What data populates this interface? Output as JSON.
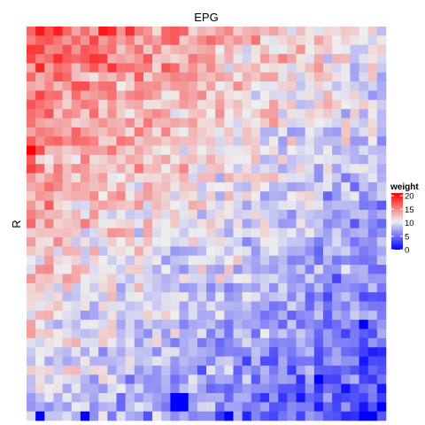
{
  "chart_data": {
    "type": "heatmap",
    "title": "EPG",
    "xlabel": "",
    "ylabel": "R",
    "n_cols": 40,
    "n_rows": 43,
    "fill_variable": "weight",
    "fill_range": [
      0,
      21
    ],
    "colorscale": {
      "low": "#0000FF",
      "mid": "#EEEEEE",
      "high": "#FF0000",
      "midpoint": 10.5
    },
    "legend": {
      "title": "weight",
      "ticks": [
        0,
        5,
        10,
        15,
        20
      ],
      "position": "right"
    },
    "value_trend_note_free": true,
    "data_generation": {
      "top_left_value": 17,
      "bottom_right_value": 3,
      "noise": 4,
      "seed": 7
    },
    "highlight_cells": [
      {
        "row": 0,
        "col": 1,
        "value": 20
      },
      {
        "row": 0,
        "col": 8,
        "value": 20
      },
      {
        "row": 0,
        "col": 9,
        "value": 19
      },
      {
        "row": 0,
        "col": 11,
        "value": 19
      },
      {
        "row": 13,
        "col": 0,
        "value": 21
      },
      {
        "row": 32,
        "col": 37,
        "value": 0
      },
      {
        "row": 38,
        "col": 32,
        "value": 0
      },
      {
        "row": 40,
        "col": 16,
        "value": 0
      },
      {
        "row": 40,
        "col": 17,
        "value": 0
      },
      {
        "row": 40,
        "col": 30,
        "value": 1
      },
      {
        "row": 41,
        "col": 16,
        "value": 0
      },
      {
        "row": 41,
        "col": 17,
        "value": 0
      },
      {
        "row": 41,
        "col": 39,
        "value": 0
      },
      {
        "row": 42,
        "col": 1,
        "value": 0
      },
      {
        "row": 42,
        "col": 6,
        "value": 0
      },
      {
        "row": 42,
        "col": 22,
        "value": 0
      },
      {
        "row": 42,
        "col": 38,
        "value": 0
      }
    ]
  }
}
